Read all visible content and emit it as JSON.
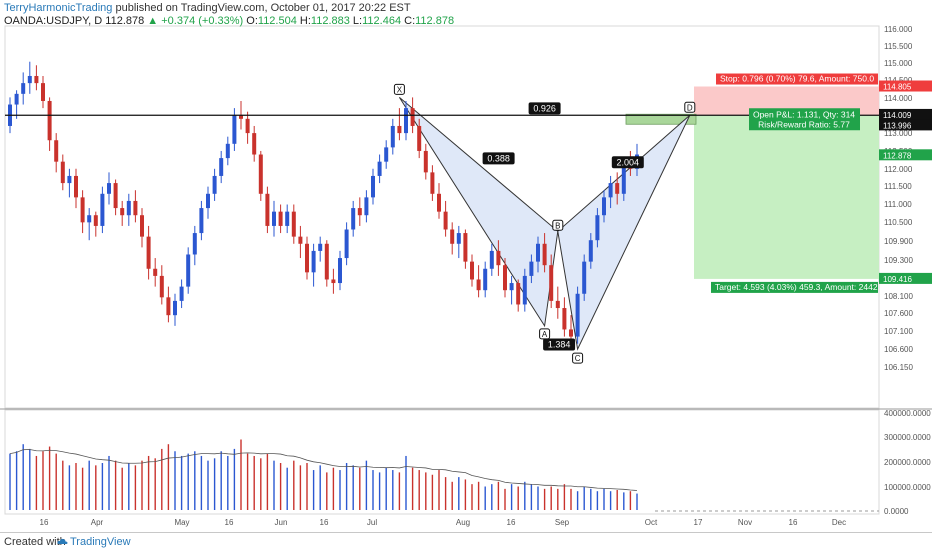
{
  "header": {
    "author": "TerryHarmonicTrading",
    "published": " published on TradingView.com, October 01, 2017 20:22 EST",
    "symbol": "OANDA:USDJPY, D",
    "last": "112.878",
    "change_arrow": "▲",
    "change": "+0.374 (+0.33%)",
    "o_label": "O:",
    "o": "112.504",
    "h_label": "H:",
    "h": "112.883",
    "l_label": "L:",
    "l": "112.464",
    "c_label": "C:",
    "c": "112.878"
  },
  "footer": {
    "created": "Created with",
    "brand": "TradingView"
  },
  "colors": {
    "up": "#2b57d1",
    "down": "#c9322c",
    "pattern_fill": "#dfe8f8",
    "stop_zone": "#fbc9c9",
    "target_zone": "#c6efc2",
    "entry_box": "#a9d69a",
    "red_label": "#ef3d3d",
    "green_label": "#21a34a",
    "black_tag": "#111111"
  },
  "chart_data": {
    "type": "candlestick",
    "symbol": "OANDA:USDJPY",
    "interval": "D",
    "x_tick_labels": [
      "16",
      "Apr",
      "May",
      "16",
      "Jun",
      "16",
      "Jul",
      "Aug",
      "16",
      "Sep",
      "Oct",
      "17",
      "Nov",
      "16",
      "Dec"
    ],
    "price_tick_labels": [
      "116.000",
      "115.500",
      "115.000",
      "114.500",
      "114.000",
      "113.500",
      "113.000",
      "112.500",
      "112.000",
      "111.500",
      "111.000",
      "110.500",
      "109.900",
      "109.300",
      "108.700",
      "108.100",
      "107.600",
      "107.100",
      "106.600",
      "106.150"
    ],
    "price_range": [
      105.8,
      116.5
    ],
    "price_tags": [
      {
        "value": 114.805,
        "label": "114.805",
        "color": "#ef3d3d"
      },
      {
        "value": 114.009,
        "label": "114.009",
        "color": "#111111"
      },
      {
        "value": 113.996,
        "label": "113.996",
        "color": "#111111"
      },
      {
        "value": 112.878,
        "label": "112.878",
        "color": "#21a34a"
      },
      {
        "value": 109.416,
        "label": "109.416",
        "color": "#21a34a"
      }
    ],
    "horizontal_line": 114.0,
    "harmonic_pattern": {
      "points": [
        {
          "label": "X",
          "value": 114.5
        },
        {
          "label": "A",
          "value": 108.1
        },
        {
          "label": "B",
          "value": 110.75
        },
        {
          "label": "C",
          "value": 107.45
        },
        {
          "label": "D",
          "value": 114.0
        }
      ],
      "ratios": [
        "0.926",
        "0.388",
        "1.384",
        "2.004"
      ]
    },
    "position": {
      "stop_text": "Stop: 0.796 (0.70%) 79.6, Amount: 750.0",
      "pnl_text": "Open P&L: 1.131, Qty: 314",
      "rr_text": "Risk/Reward Ratio: 5.77",
      "target_text": "Target: 4.593 (4.03%) 459.3, Amount: 2442",
      "stop": 114.805,
      "entry": 114.0,
      "target": 109.416
    },
    "volume": {
      "tick_labels": [
        "400000.0000",
        "300000.0000",
        "200000.0000",
        "100000.0000",
        "0.0000"
      ],
      "range": [
        0,
        400000
      ]
    },
    "series": [
      {
        "kind": "ohlc",
        "values": [
          [
            113.7,
            114.5,
            113.5,
            114.3
          ],
          [
            114.3,
            114.7,
            113.9,
            114.6
          ],
          [
            114.6,
            115.2,
            114.3,
            114.9
          ],
          [
            114.9,
            115.5,
            114.6,
            115.1
          ],
          [
            115.1,
            115.4,
            114.7,
            114.9
          ],
          [
            114.9,
            115.1,
            114.2,
            114.4
          ],
          [
            114.4,
            114.5,
            113.0,
            113.3
          ],
          [
            113.3,
            113.5,
            112.4,
            112.7
          ],
          [
            112.7,
            112.9,
            111.9,
            112.1
          ],
          [
            112.1,
            112.5,
            111.7,
            112.3
          ],
          [
            112.3,
            112.5,
            111.4,
            111.7
          ],
          [
            111.7,
            111.9,
            110.7,
            111.0
          ],
          [
            111.0,
            111.4,
            110.5,
            111.2
          ],
          [
            111.2,
            111.3,
            110.6,
            110.9
          ],
          [
            110.9,
            112.0,
            110.7,
            111.8
          ],
          [
            111.8,
            112.4,
            111.5,
            112.1
          ],
          [
            112.1,
            112.2,
            111.2,
            111.4
          ],
          [
            111.4,
            111.6,
            110.9,
            111.2
          ],
          [
            111.2,
            111.8,
            110.9,
            111.6
          ],
          [
            111.6,
            111.9,
            111.0,
            111.2
          ],
          [
            111.2,
            111.4,
            110.3,
            110.6
          ],
          [
            110.6,
            110.9,
            109.4,
            109.7
          ],
          [
            109.7,
            110.0,
            109.2,
            109.5
          ],
          [
            109.5,
            109.8,
            108.7,
            108.9
          ],
          [
            108.9,
            109.2,
            108.2,
            108.4
          ],
          [
            108.4,
            109.0,
            108.1,
            108.8
          ],
          [
            108.8,
            109.4,
            108.6,
            109.2
          ],
          [
            109.2,
            110.3,
            109.0,
            110.1
          ],
          [
            110.1,
            110.9,
            109.8,
            110.7
          ],
          [
            110.7,
            111.6,
            110.5,
            111.4
          ],
          [
            111.4,
            112.0,
            111.1,
            111.8
          ],
          [
            111.8,
            112.5,
            111.6,
            112.3
          ],
          [
            112.3,
            113.0,
            112.1,
            112.8
          ],
          [
            112.8,
            113.4,
            112.6,
            113.2
          ],
          [
            113.2,
            114.2,
            113.0,
            114.0
          ],
          [
            114.0,
            114.4,
            113.6,
            113.9
          ],
          [
            113.9,
            114.1,
            113.2,
            113.5
          ],
          [
            113.5,
            113.7,
            112.7,
            112.9
          ],
          [
            112.9,
            113.0,
            111.6,
            111.8
          ],
          [
            111.8,
            112.0,
            110.7,
            110.9
          ],
          [
            110.9,
            111.6,
            110.6,
            111.3
          ],
          [
            111.3,
            111.5,
            110.7,
            110.9
          ],
          [
            110.9,
            111.5,
            110.7,
            111.3
          ],
          [
            111.3,
            111.5,
            110.4,
            110.6
          ],
          [
            110.6,
            110.9,
            110.0,
            110.4
          ],
          [
            110.4,
            110.6,
            109.4,
            109.6
          ],
          [
            109.6,
            110.4,
            109.2,
            110.2
          ],
          [
            110.2,
            110.6,
            109.9,
            110.4
          ],
          [
            110.4,
            110.5,
            109.2,
            109.4
          ],
          [
            109.4,
            109.7,
            109.0,
            109.3
          ],
          [
            109.3,
            110.2,
            109.1,
            110.0
          ],
          [
            110.0,
            111.0,
            109.8,
            110.8
          ],
          [
            110.8,
            111.6,
            110.6,
            111.4
          ],
          [
            111.4,
            111.7,
            110.9,
            111.2
          ],
          [
            111.2,
            111.9,
            111.0,
            111.7
          ],
          [
            111.7,
            112.5,
            111.5,
            112.3
          ],
          [
            112.3,
            112.9,
            112.1,
            112.7
          ],
          [
            112.7,
            113.3,
            112.5,
            113.1
          ],
          [
            113.1,
            113.9,
            112.9,
            113.7
          ],
          [
            113.7,
            114.2,
            113.3,
            113.5
          ],
          [
            113.5,
            114.4,
            113.3,
            114.2
          ],
          [
            114.2,
            114.5,
            113.5,
            113.7
          ],
          [
            113.7,
            113.9,
            112.8,
            113.0
          ],
          [
            113.0,
            113.2,
            112.2,
            112.4
          ],
          [
            112.4,
            112.6,
            111.6,
            111.8
          ],
          [
            111.8,
            112.1,
            111.1,
            111.3
          ],
          [
            111.3,
            111.6,
            110.6,
            110.8
          ],
          [
            110.8,
            111.0,
            110.1,
            110.4
          ],
          [
            110.4,
            110.9,
            110.0,
            110.7
          ],
          [
            110.7,
            110.8,
            109.7,
            109.9
          ],
          [
            109.9,
            110.1,
            109.2,
            109.4
          ],
          [
            109.4,
            109.8,
            108.9,
            109.1
          ],
          [
            109.1,
            109.9,
            108.9,
            109.7
          ],
          [
            109.7,
            110.4,
            109.5,
            110.2
          ],
          [
            110.2,
            110.5,
            109.5,
            109.8
          ],
          [
            109.8,
            110.0,
            108.9,
            109.1
          ],
          [
            109.1,
            109.5,
            108.7,
            109.3
          ],
          [
            109.3,
            109.4,
            108.5,
            108.7
          ],
          [
            108.7,
            109.7,
            108.5,
            109.5
          ],
          [
            109.5,
            110.1,
            109.3,
            109.9
          ],
          [
            109.9,
            110.6,
            109.6,
            110.4
          ],
          [
            110.4,
            110.7,
            109.6,
            109.8
          ],
          [
            109.8,
            110.1,
            108.6,
            108.8
          ],
          [
            108.8,
            109.2,
            108.3,
            108.6
          ],
          [
            108.6,
            108.9,
            107.8,
            108.0
          ],
          [
            108.0,
            108.4,
            107.5,
            107.8
          ],
          [
            107.8,
            109.2,
            107.6,
            109.0
          ],
          [
            109.0,
            110.1,
            108.8,
            109.9
          ],
          [
            109.9,
            110.7,
            109.7,
            110.5
          ],
          [
            110.5,
            111.4,
            110.3,
            111.2
          ],
          [
            111.2,
            111.9,
            111.0,
            111.7
          ],
          [
            111.7,
            112.3,
            111.4,
            112.1
          ],
          [
            112.1,
            112.4,
            111.5,
            111.8
          ],
          [
            111.8,
            112.8,
            111.6,
            112.6
          ],
          [
            112.6,
            113.0,
            112.3,
            112.5
          ],
          [
            112.5,
            113.2,
            112.3,
            112.9
          ]
        ]
      },
      {
        "kind": "volume",
        "values": [
          240000,
          250000,
          280000,
          260000,
          230000,
          250000,
          270000,
          240000,
          210000,
          190000,
          200000,
          180000,
          210000,
          190000,
          200000,
          230000,
          210000,
          180000,
          200000,
          190000,
          210000,
          230000,
          220000,
          260000,
          280000,
          250000,
          230000,
          240000,
          250000,
          230000,
          210000,
          220000,
          250000,
          230000,
          260000,
          300000,
          240000,
          230000,
          220000,
          240000,
          210000,
          200000,
          180000,
          210000,
          190000,
          200000,
          170000,
          190000,
          160000,
          180000,
          170000,
          200000,
          190000,
          180000,
          210000,
          170000,
          160000,
          180000,
          170000,
          160000,
          230000,
          180000,
          170000,
          160000,
          150000,
          170000,
          140000,
          120000,
          140000,
          130000,
          110000,
          120000,
          100000,
          110000,
          120000,
          90000,
          110000,
          100000,
          120000,
          110000,
          100000,
          90000,
          100000,
          90000,
          110000,
          90000,
          80000,
          100000,
          90000,
          80000,
          90000,
          80000,
          85000,
          75000,
          80000,
          70000
        ]
      }
    ]
  }
}
